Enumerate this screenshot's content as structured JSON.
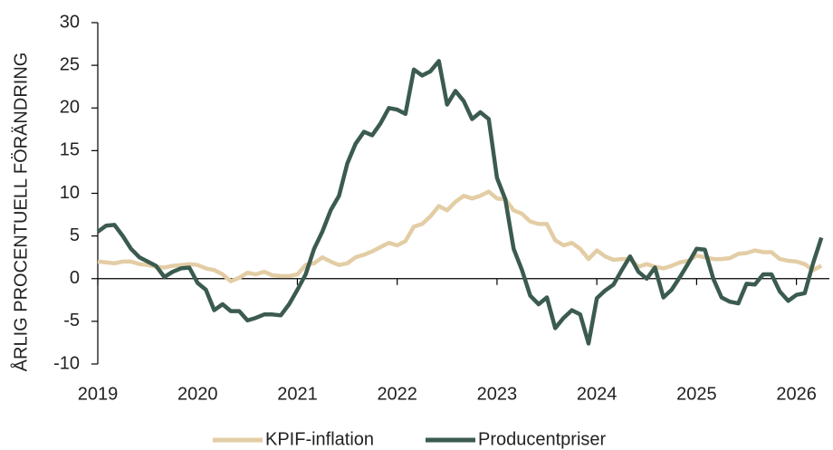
{
  "chart_data": {
    "type": "line",
    "ylabel": "ÅRLIG PROCENTUELL FÖRÄNDRING",
    "x": [
      2019,
      2019.083,
      2019.167,
      2019.25,
      2019.333,
      2019.417,
      2019.5,
      2019.583,
      2019.667,
      2019.75,
      2019.833,
      2019.917,
      2020,
      2020.083,
      2020.167,
      2020.25,
      2020.333,
      2020.417,
      2020.5,
      2020.583,
      2020.667,
      2020.75,
      2020.833,
      2020.917,
      2021,
      2021.083,
      2021.167,
      2021.25,
      2021.333,
      2021.417,
      2021.5,
      2021.583,
      2021.667,
      2021.75,
      2021.833,
      2021.917,
      2022,
      2022.083,
      2022.167,
      2022.25,
      2022.333,
      2022.417,
      2022.5,
      2022.583,
      2022.667,
      2022.75,
      2022.833,
      2022.917,
      2023,
      2023.083,
      2023.167,
      2023.25,
      2023.333,
      2023.417,
      2023.5,
      2023.583,
      2023.667,
      2023.75,
      2023.833,
      2023.917,
      2024,
      2024.083,
      2024.167,
      2024.25,
      2024.333,
      2024.417,
      2024.5,
      2024.583,
      2024.667,
      2024.75,
      2024.833,
      2024.917,
      2025,
      2025.083,
      2025.167,
      2025.25,
      2025.333,
      2025.417,
      2025.5,
      2025.583,
      2025.667,
      2025.75,
      2025.833,
      2025.917,
      2026,
      2026.083,
      2026.167,
      2026.25
    ],
    "series": [
      {
        "name": "KPIF-inflation",
        "color": "#e3cda5",
        "values": [
          2.0,
          1.9,
          1.8,
          2.0,
          2.0,
          1.7,
          1.6,
          1.4,
          1.3,
          1.5,
          1.6,
          1.7,
          1.6,
          1.2,
          1.0,
          0.5,
          -0.3,
          0.1,
          0.7,
          0.5,
          0.8,
          0.4,
          0.3,
          0.3,
          0.5,
          1.6,
          1.8,
          2.5,
          2.0,
          1.6,
          1.8,
          2.5,
          2.8,
          3.2,
          3.7,
          4.2,
          3.9,
          4.4,
          6.1,
          6.4,
          7.3,
          8.5,
          8.0,
          9.0,
          9.7,
          9.4,
          9.7,
          10.2,
          9.4,
          9.3,
          8.0,
          7.6,
          6.7,
          6.4,
          6.4,
          4.5,
          3.9,
          4.2,
          3.5,
          2.3,
          3.3,
          2.6,
          2.2,
          2.3,
          2.3,
          1.4,
          1.7,
          1.4,
          1.2,
          1.5,
          1.9,
          2.1,
          2.7,
          2.5,
          2.3,
          2.3,
          2.4,
          2.9,
          3.0,
          3.3,
          3.1,
          3.1,
          2.3,
          2.1,
          2.0,
          1.7,
          1.0,
          1.5
        ]
      },
      {
        "name": "Producentpriser",
        "color": "#3b5b4f",
        "values": [
          5.5,
          6.2,
          6.3,
          5.0,
          3.5,
          2.5,
          2.0,
          1.5,
          0.2,
          0.8,
          1.2,
          1.3,
          -0.5,
          -1.3,
          -3.7,
          -3.0,
          -3.8,
          -3.8,
          -4.9,
          -4.6,
          -4.2,
          -4.2,
          -4.3,
          -3.0,
          -1.3,
          0.5,
          3.5,
          5.5,
          8.0,
          9.7,
          13.5,
          15.8,
          17.2,
          16.8,
          18.2,
          20.0,
          19.8,
          19.3,
          24.5,
          23.8,
          24.3,
          25.5,
          20.4,
          22.0,
          20.8,
          18.7,
          19.5,
          18.7,
          11.8,
          9.3,
          3.5,
          1.0,
          -2.0,
          -3.0,
          -2.2,
          -5.8,
          -4.6,
          -3.7,
          -4.2,
          -7.6,
          -2.3,
          -1.4,
          -0.7,
          1.0,
          2.6,
          0.8,
          0.0,
          1.3,
          -2.2,
          -1.3,
          0.2,
          1.8,
          3.5,
          3.4,
          0.0,
          -2.2,
          -2.7,
          -2.9,
          -0.6,
          -0.7,
          0.5,
          0.5,
          -1.5,
          -2.6,
          -1.9,
          -1.7,
          1.8,
          4.8
        ]
      }
    ],
    "xlim": [
      2019,
      2026.33
    ],
    "ylim": [
      -10,
      30
    ],
    "xticks": [
      2019,
      2020,
      2021,
      2022,
      2023,
      2024,
      2025,
      2026
    ],
    "yticks": [
      -10,
      -5,
      0,
      5,
      10,
      15,
      20,
      25,
      30
    ],
    "legend": "bottom"
  }
}
